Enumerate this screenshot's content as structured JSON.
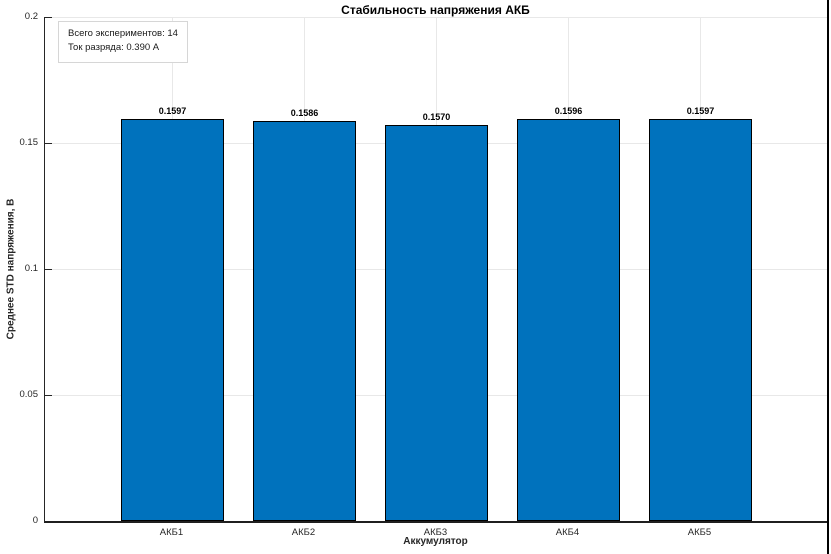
{
  "chart_data": {
    "type": "bar",
    "title": "Стабильность напряжения АКБ",
    "xlabel": "Аккумулятор",
    "ylabel": "Среднее STD напряжения, В",
    "categories": [
      "АКБ1",
      "АКБ2",
      "АКБ3",
      "АКБ4",
      "АКБ5"
    ],
    "values": [
      0.1597,
      0.1586,
      0.157,
      0.1596,
      0.1597
    ],
    "bar_value_labels": [
      "0.1597",
      "0.1586",
      "0.1570",
      "0.1596",
      "0.1597"
    ],
    "ylim": [
      0,
      0.2
    ],
    "yticks": [
      0,
      0.05,
      0.1,
      0.15,
      0.2
    ],
    "ytick_labels": [
      "0",
      "0.05",
      "0.1",
      "0.15",
      "0.2"
    ],
    "grid": true,
    "legend": false,
    "bar_color": "#0072BD",
    "bar_edge_color": "#000000",
    "annotations": [
      "Всего экспериментов: 14",
      "Ток разряда: 0.390 А"
    ]
  }
}
